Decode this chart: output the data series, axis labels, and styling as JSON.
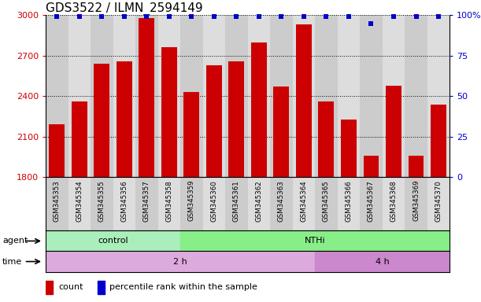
{
  "title": "GDS3522 / ILMN_2594149",
  "samples": [
    "GSM345353",
    "GSM345354",
    "GSM345355",
    "GSM345356",
    "GSM345357",
    "GSM345358",
    "GSM345359",
    "GSM345360",
    "GSM345361",
    "GSM345362",
    "GSM345363",
    "GSM345364",
    "GSM345365",
    "GSM345366",
    "GSM345367",
    "GSM345368",
    "GSM345369",
    "GSM345370"
  ],
  "counts": [
    2190,
    2360,
    2640,
    2660,
    2980,
    2760,
    2430,
    2630,
    2660,
    2800,
    2470,
    2930,
    2360,
    2230,
    1960,
    2480,
    1960,
    2340
  ],
  "percentile_ranks": [
    99,
    99,
    99,
    99,
    99,
    99,
    99,
    99,
    99,
    99,
    99,
    99,
    99,
    99,
    95,
    99,
    99,
    99
  ],
  "bar_color": "#cc0000",
  "dot_color": "#0000cc",
  "ylim_left": [
    1800,
    3000
  ],
  "ylim_right": [
    0,
    100
  ],
  "yticks_left": [
    1800,
    2100,
    2400,
    2700,
    3000
  ],
  "yticks_right": [
    0,
    25,
    50,
    75,
    100
  ],
  "agent_groups": [
    {
      "label": "control",
      "start": 0,
      "end": 6,
      "color": "#aaeebb"
    },
    {
      "label": "NTHi",
      "start": 6,
      "end": 18,
      "color": "#88ee88"
    }
  ],
  "time_groups": [
    {
      "label": "2 h",
      "start": 0,
      "end": 12,
      "color": "#ddaadd"
    },
    {
      "label": "4 h",
      "start": 12,
      "end": 18,
      "color": "#cc88cc"
    }
  ],
  "agent_label": "agent",
  "time_label": "time",
  "legend_count_label": "count",
  "legend_pct_label": "percentile rank within the sample",
  "background_color": "#ffffff",
  "title_fontsize": 11,
  "axis_tick_fontsize": 8,
  "col_colors": [
    "#cccccc",
    "#dddddd"
  ]
}
